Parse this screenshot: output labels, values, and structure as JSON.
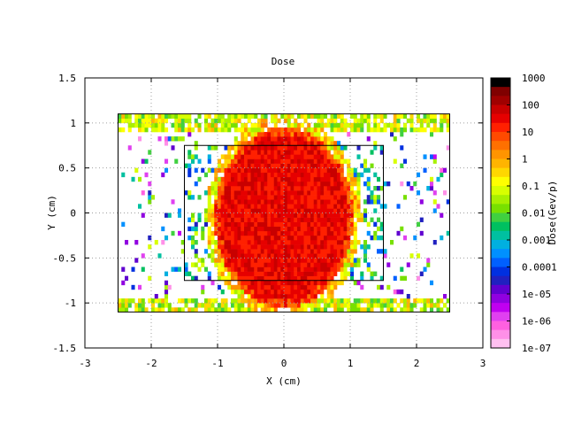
{
  "chart_data": {
    "type": "heatmap",
    "title": "Dose",
    "xlabel": "X (cm)",
    "ylabel": "Y (cm)",
    "xlim": [
      -3,
      3
    ],
    "ylim": [
      -1.5,
      1.5
    ],
    "x_ticks": [
      "-3",
      "-2",
      "-1",
      "0",
      "1",
      "2",
      "3"
    ],
    "y_ticks": [
      "1.5",
      "1",
      "0.5",
      "0",
      "-0.5",
      "-1",
      "-1.5"
    ],
    "grid": true,
    "colorbar": {
      "label": "Dose(Gev/p)",
      "scale": "log",
      "min": 1e-07,
      "max": 1000,
      "tick_labels": [
        "1000",
        "100",
        "10",
        "1",
        "0.1",
        "0.01",
        "0.001",
        "0.0001",
        "1e-05",
        "1e-06",
        "1e-07"
      ],
      "colors": [
        "#000000",
        "#800000",
        "#a00000",
        "#c80000",
        "#e60000",
        "#ff2000",
        "#ff4a00",
        "#ff7000",
        "#ff9400",
        "#ffb400",
        "#ffd700",
        "#ffff00",
        "#d8ff00",
        "#a8f000",
        "#78e000",
        "#40d040",
        "#00c060",
        "#00c0a0",
        "#00b0e0",
        "#0090ff",
        "#0060ff",
        "#0030e0",
        "#2020c0",
        "#6000d0",
        "#9000e0",
        "#c000f0",
        "#e040f0",
        "#ff60e0",
        "#ff90e8",
        "#ffc0f0"
      ]
    },
    "regions": [
      {
        "name": "outer-rectangle",
        "x": [
          -2.5,
          2.5
        ],
        "y": [
          -1.1,
          1.1
        ]
      },
      {
        "name": "inner-rectangle",
        "x": [
          -1.5,
          1.5
        ],
        "y": [
          -0.75,
          0.75
        ]
      },
      {
        "name": "high-dose-ellipse",
        "center": [
          0,
          -0.05
        ],
        "radius": [
          1.05,
          1.0
        ],
        "dose_level": "~10-100"
      }
    ]
  }
}
